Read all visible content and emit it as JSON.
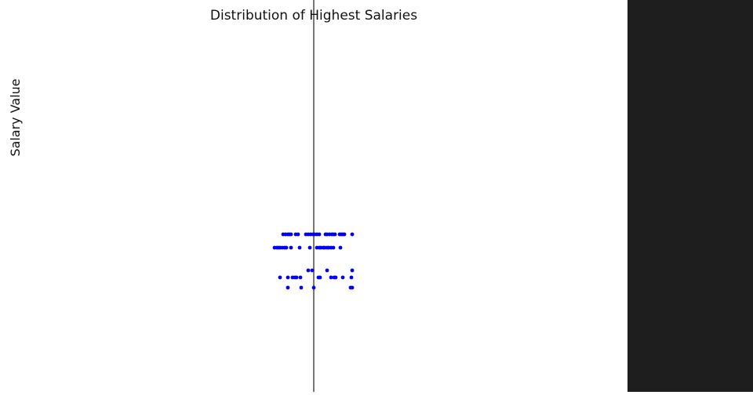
{
  "chart_data": {
    "type": "scatter",
    "title": "Distribution of Highest Salaries",
    "xlabel": "",
    "ylabel": "Salary Value",
    "xlim": [
      -1,
      1
    ],
    "ylim": [
      0,
      100
    ],
    "grid": false,
    "legend": "none",
    "point_color": "#0000ff",
    "axis_line_color": "#777777",
    "rows": [
      {
        "y": 40.2,
        "x": [
          -0.78,
          -0.72,
          -0.66,
          -0.62,
          -0.58,
          -0.46,
          -0.4,
          -0.2,
          -0.14,
          -0.08,
          -0.02,
          0.02,
          0.08,
          0.14,
          0.3,
          0.34,
          0.4,
          0.46,
          0.5,
          0.54,
          0.66,
          0.7,
          0.74,
          0.78,
          0.98
        ]
      },
      {
        "y": 36.8,
        "x": [
          -1.0,
          -0.94,
          -0.9,
          -0.86,
          -0.8,
          -0.74,
          -0.7,
          -0.58,
          -0.36,
          -0.1,
          0.08,
          0.14,
          0.18,
          0.24,
          0.28,
          0.34,
          0.38,
          0.44,
          0.5,
          0.68
        ]
      },
      {
        "y": 31.0,
        "x": [
          -0.14,
          -0.04,
          0.34,
          0.98
        ]
      },
      {
        "y": 29.2,
        "x": [
          -0.86,
          -0.66,
          -0.54,
          -0.48,
          -0.44,
          -0.34,
          0.12,
          0.16,
          0.44,
          0.52,
          0.56,
          0.74,
          0.96
        ]
      },
      {
        "y": 26.6,
        "x": [
          -0.66,
          -0.32,
          0.0,
          0.94,
          0.98
        ]
      }
    ]
  }
}
